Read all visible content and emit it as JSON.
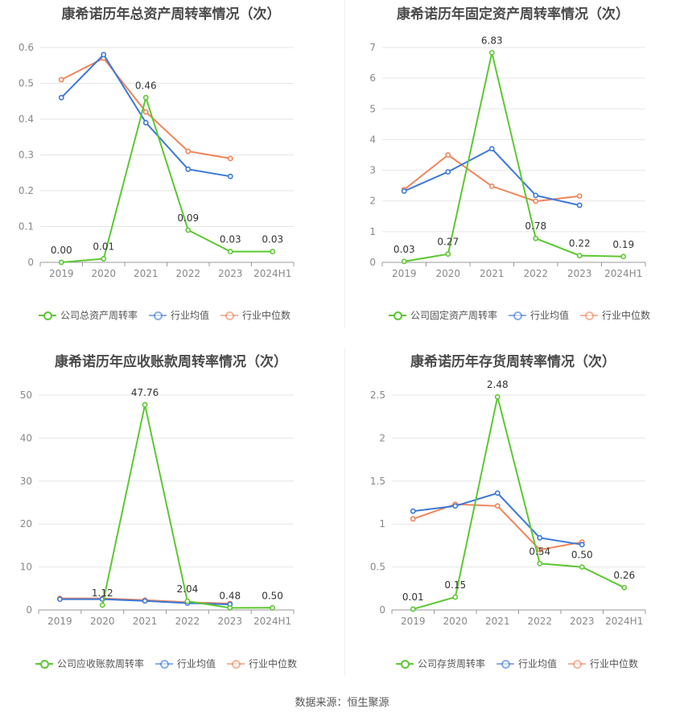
{
  "source": "数据来源：恒生聚源",
  "colors": {
    "company": "#5cc832",
    "avg": "#3c78d8",
    "median": "#f0845a"
  },
  "chart_data": [
    {
      "type": "line",
      "title": "康希诺历年总资产周转率情况（次）",
      "categories": [
        "2019",
        "2020",
        "2021",
        "2022",
        "2023",
        "2024H1"
      ],
      "yticks": [
        "0",
        "0.1",
        "0.2",
        "0.3",
        "0.4",
        "0.5",
        "0.6"
      ],
      "ylim": [
        0,
        0.6
      ],
      "series": [
        {
          "name": "公司总资产周转率",
          "values": [
            0.0,
            0.01,
            0.46,
            0.09,
            0.03,
            0.03
          ],
          "labels": [
            "0.00",
            "0.01",
            "0.46",
            "0.09",
            "0.03",
            "0.03"
          ]
        },
        {
          "name": "行业均值",
          "values": [
            0.46,
            0.58,
            0.39,
            0.26,
            0.24,
            null
          ]
        },
        {
          "name": "行业中位数",
          "values": [
            0.51,
            0.57,
            0.42,
            0.31,
            0.29,
            null
          ]
        }
      ]
    },
    {
      "type": "line",
      "title": "康希诺历年固定资产周转率情况（次）",
      "categories": [
        "2019",
        "2020",
        "2021",
        "2022",
        "2023",
        "2024H1"
      ],
      "yticks": [
        "0",
        "1",
        "2",
        "3",
        "4",
        "5",
        "6",
        "7"
      ],
      "ylim": [
        0,
        7
      ],
      "series": [
        {
          "name": "公司固定资产周转率",
          "values": [
            0.03,
            0.27,
            6.83,
            0.78,
            0.22,
            0.19
          ],
          "labels": [
            "0.03",
            "0.27",
            "6.83",
            "0.78",
            "0.22",
            "0.19"
          ]
        },
        {
          "name": "行业均值",
          "values": [
            2.32,
            2.95,
            3.7,
            2.18,
            1.86,
            null
          ]
        },
        {
          "name": "行业中位数",
          "values": [
            2.37,
            3.5,
            2.48,
            1.99,
            2.16,
            null
          ]
        }
      ]
    },
    {
      "type": "line",
      "title": "康希诺历年应收账款周转率情况（次）",
      "categories": [
        "2019",
        "2020",
        "2021",
        "2022",
        "2023",
        "2024H1"
      ],
      "yticks": [
        "0",
        "10",
        "20",
        "30",
        "40",
        "50"
      ],
      "ylim": [
        0,
        50
      ],
      "series": [
        {
          "name": "公司应收账款周转率",
          "values": [
            null,
            1.12,
            47.76,
            2.04,
            0.48,
            0.5
          ],
          "labels": [
            null,
            "1.12",
            "47.76",
            "2.04",
            "0.48",
            "0.50"
          ]
        },
        {
          "name": "行业均值",
          "values": [
            2.5,
            2.5,
            2.1,
            1.6,
            1.3,
            null
          ]
        },
        {
          "name": "行业中位数",
          "values": [
            2.7,
            2.7,
            2.3,
            1.8,
            1.5,
            null
          ]
        }
      ]
    },
    {
      "type": "line",
      "title": "康希诺历年存货周转率情况（次）",
      "categories": [
        "2019",
        "2020",
        "2021",
        "2022",
        "2023",
        "2024H1"
      ],
      "yticks": [
        "0",
        "0.5",
        "1",
        "1.5",
        "2",
        "2.5"
      ],
      "ylim": [
        0,
        2.5
      ],
      "series": [
        {
          "name": "公司存货周转率",
          "values": [
            0.01,
            0.15,
            2.48,
            0.54,
            0.5,
            0.26
          ],
          "labels": [
            "0.01",
            "0.15",
            "2.48",
            "0.54",
            "0.50",
            "0.26"
          ]
        },
        {
          "name": "行业均值",
          "values": [
            1.15,
            1.21,
            1.36,
            0.84,
            0.76,
            null
          ]
        },
        {
          "name": "行业中位数",
          "values": [
            1.06,
            1.23,
            1.21,
            0.7,
            0.79,
            null
          ]
        }
      ]
    }
  ]
}
